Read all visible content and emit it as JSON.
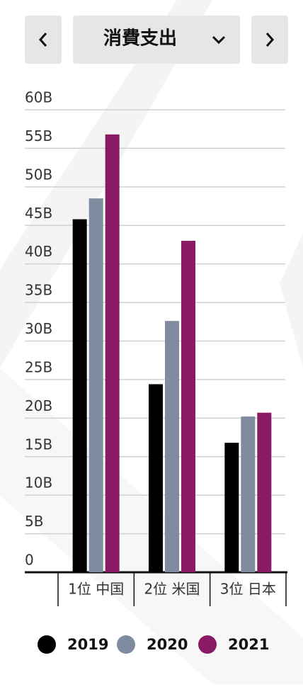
{
  "selector": "消費支出",
  "chart_data": {
    "type": "bar",
    "categories": [
      "1位 中国",
      "2位 米国",
      "3位 日本"
    ],
    "series": [
      {
        "name": "2019",
        "color": "#000000",
        "values": [
          45.8,
          24.4,
          16.8
        ]
      },
      {
        "name": "2020",
        "color": "#7f8b9e",
        "values": [
          48.5,
          32.6,
          20.2
        ]
      },
      {
        "name": "2021",
        "color": "#8a1a63",
        "values": [
          56.8,
          43.0,
          20.7
        ]
      }
    ],
    "ylim": [
      0,
      60
    ],
    "yticks": [
      0,
      {
        "value": 5,
        "label": "5B"
      },
      {
        "value": 10,
        "label": "10B"
      },
      {
        "value": 15,
        "label": "15B"
      },
      {
        "value": 20,
        "label": "20B"
      },
      {
        "value": 25,
        "label": "25B"
      },
      {
        "value": 30,
        "label": "30B"
      },
      {
        "value": 35,
        "label": "35B"
      },
      {
        "value": 40,
        "label": "40B"
      },
      {
        "value": 45,
        "label": "45B"
      },
      {
        "value": 50,
        "label": "50B"
      },
      {
        "value": 55,
        "label": "55B"
      },
      {
        "value": 60,
        "label": "60B"
      }
    ],
    "grid": true,
    "legend": "bottom"
  }
}
